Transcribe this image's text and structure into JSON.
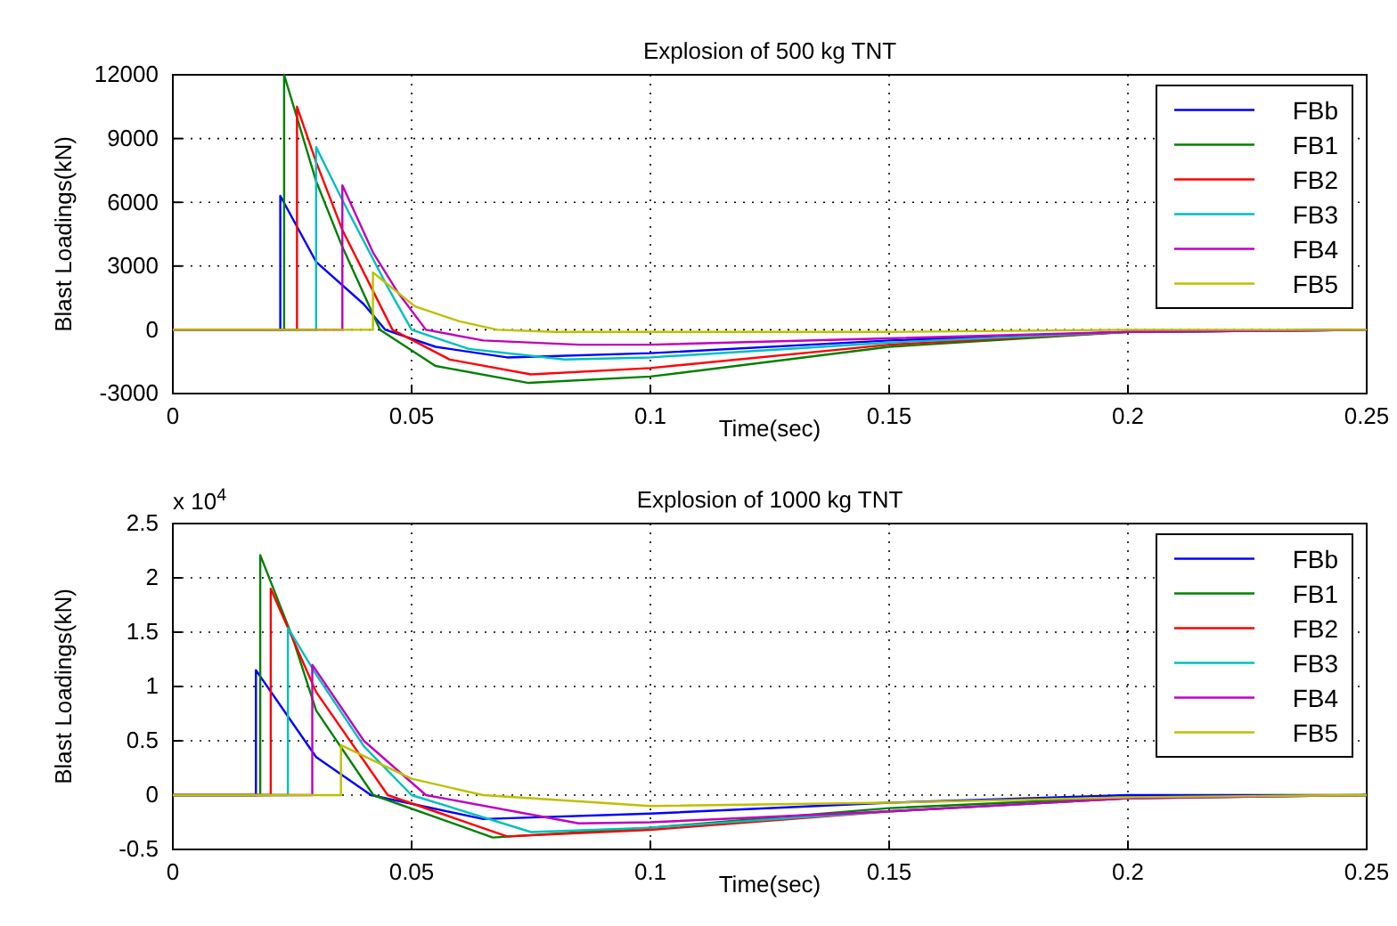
{
  "chart_data": [
    {
      "type": "line",
      "title": "Explosion of 500 kg TNT",
      "xlabel": "Time(sec)",
      "ylabel": "Blast Loadings(kN)",
      "xlim": [
        0,
        0.25
      ],
      "xticks": [
        0,
        0.05,
        0.1,
        0.15,
        0.2,
        0.25
      ],
      "ylim": [
        -3000,
        12000
      ],
      "yticks": [
        -3000,
        0,
        3000,
        6000,
        9000,
        12000
      ],
      "grid": true,
      "legend": "top right",
      "line_style": "solid",
      "marker": "none",
      "series": [
        {
          "name": "FBb",
          "color": "#0000ff",
          "x": [
            0,
            0.0225,
            0.0225,
            0.03,
            0.04,
            0.0445,
            0.055,
            0.07,
            0.1,
            0.15,
            0.2,
            0.25
          ],
          "values": [
            0,
            0,
            6300,
            3200,
            1200,
            0,
            -800,
            -1300,
            -1100,
            -500,
            -100,
            0
          ]
        },
        {
          "name": "FB1",
          "color": "#008000",
          "x": [
            0,
            0.0233,
            0.0233,
            0.03,
            0.0355,
            0.0434,
            0.055,
            0.0745,
            0.1,
            0.15,
            0.2,
            0.25
          ],
          "values": [
            0,
            0,
            12000,
            7000,
            3900,
            0,
            -1700,
            -2500,
            -2200,
            -800,
            -100,
            0
          ]
        },
        {
          "name": "FB2",
          "color": "#ff0000",
          "x": [
            0,
            0.026,
            0.026,
            0.03,
            0.0355,
            0.046,
            0.058,
            0.075,
            0.1,
            0.15,
            0.2,
            0.25
          ],
          "values": [
            0,
            0,
            10500,
            7900,
            4700,
            0,
            -1400,
            -2100,
            -1800,
            -700,
            -100,
            0
          ]
        },
        {
          "name": "FB3",
          "color": "#00bfbf",
          "x": [
            0,
            0.03,
            0.03,
            0.0355,
            0.045,
            0.05,
            0.062,
            0.082,
            0.1,
            0.15,
            0.2,
            0.25
          ],
          "values": [
            0,
            0,
            8600,
            6100,
            2000,
            0,
            -900,
            -1400,
            -1300,
            -600,
            -100,
            0
          ]
        },
        {
          "name": "FB4",
          "color": "#bf00bf",
          "x": [
            0,
            0.0355,
            0.0355,
            0.042,
            0.047,
            0.053,
            0.065,
            0.085,
            0.1,
            0.15,
            0.2,
            0.25
          ],
          "values": [
            0,
            0,
            6800,
            3600,
            1800,
            0,
            -500,
            -700,
            -700,
            -400,
            -100,
            0
          ]
        },
        {
          "name": "FB5",
          "color": "#bfbf00",
          "x": [
            0,
            0.0419,
            0.0419,
            0.0507,
            0.06,
            0.068,
            0.08,
            0.15,
            0.2,
            0.25
          ],
          "values": [
            0,
            0,
            2700,
            1100,
            400,
            0,
            -100,
            -100,
            0,
            0
          ]
        }
      ]
    },
    {
      "type": "line",
      "title": "Explosion of 1000 kg TNT",
      "xlabel": "Time(sec)",
      "ylabel": "Blast Loadings(kN)",
      "annotations": [
        "x 10$^{4}$"
      ],
      "xlim": [
        0,
        0.25
      ],
      "xticks": [
        0,
        0.05,
        0.1,
        0.15,
        0.2,
        0.25
      ],
      "ylim": [
        -0.5,
        2.5
      ],
      "yticks": [
        -0.5,
        0,
        0.5,
        1,
        1.5,
        2,
        2.5
      ],
      "grid": true,
      "legend": "top right",
      "line_style": "solid",
      "marker": "none",
      "series": [
        {
          "name": "FBb",
          "color": "#0000ff",
          "x": [
            0,
            0.0174,
            0.0174,
            0.03,
            0.0415,
            0.065,
            0.1,
            0.15,
            0.2,
            0.25
          ],
          "values": [
            0,
            0,
            1.15,
            0.35,
            0,
            -0.22,
            -0.17,
            -0.07,
            0,
            0
          ]
        },
        {
          "name": "FB1",
          "color": "#008000",
          "x": [
            0,
            0.0183,
            0.0183,
            0.025,
            0.03,
            0.042,
            0.067,
            0.1,
            0.15,
            0.2,
            0.25
          ],
          "values": [
            0,
            0,
            2.21,
            1.46,
            0.78,
            0,
            -0.39,
            -0.3,
            -0.12,
            -0.02,
            0
          ]
        },
        {
          "name": "FB2",
          "color": "#ff0000",
          "x": [
            0,
            0.0205,
            0.0205,
            0.03,
            0.045,
            0.07,
            0.1,
            0.15,
            0.2,
            0.25
          ],
          "values": [
            0,
            0,
            1.9,
            0.95,
            0,
            -0.38,
            -0.32,
            -0.15,
            -0.03,
            0
          ]
        },
        {
          "name": "FB3",
          "color": "#00bfbf",
          "x": [
            0,
            0.0241,
            0.0241,
            0.03,
            0.04,
            0.05,
            0.075,
            0.1,
            0.15,
            0.2,
            0.25
          ],
          "values": [
            0,
            0,
            1.54,
            1.11,
            0.45,
            0,
            -0.34,
            -0.3,
            -0.15,
            -0.03,
            0
          ]
        },
        {
          "name": "FB4",
          "color": "#bf00bf",
          "x": [
            0,
            0.0292,
            0.0292,
            0.04,
            0.053,
            0.085,
            0.1,
            0.15,
            0.2,
            0.25
          ],
          "values": [
            0,
            0,
            1.2,
            0.5,
            0,
            -0.26,
            -0.25,
            -0.15,
            -0.03,
            0
          ]
        },
        {
          "name": "FB5",
          "color": "#bfbf00",
          "x": [
            0,
            0.0352,
            0.0352,
            0.05,
            0.065,
            0.1,
            0.15,
            0.2,
            0.25
          ],
          "values": [
            0,
            0,
            0.46,
            0.15,
            0,
            -0.1,
            -0.07,
            -0.02,
            0
          ]
        }
      ]
    }
  ]
}
